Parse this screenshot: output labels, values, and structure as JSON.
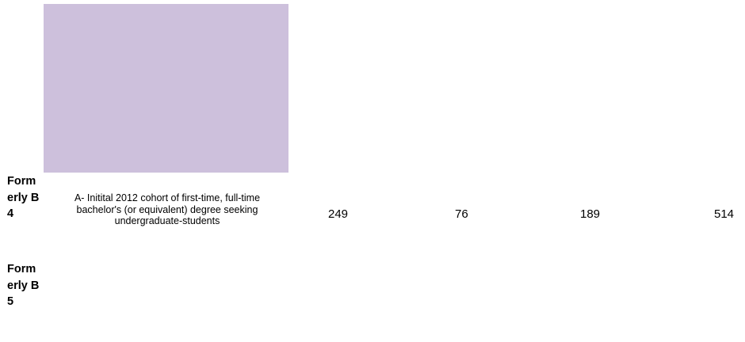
{
  "colors": {
    "header_block": "#cdc0dc"
  },
  "rows": [
    {
      "label": "Formerly B4",
      "description": "A- Initital 2012 cohort of first-time, full-time bachelor's (or equivalent) degree seeking undergraduate-students",
      "values": [
        "249",
        "76",
        "189",
        "514"
      ]
    },
    {
      "label": "Formerly B5"
    }
  ]
}
